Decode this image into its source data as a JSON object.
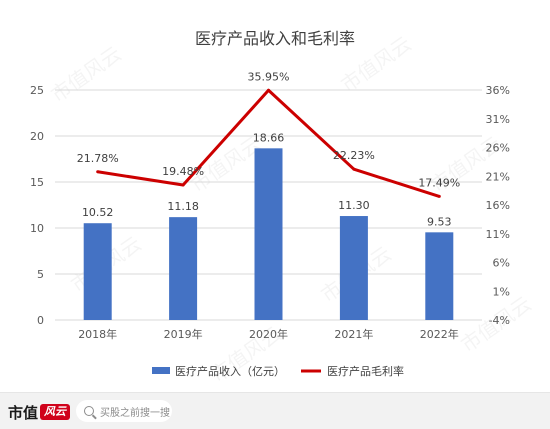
{
  "chart_data": {
    "type": "bar+line",
    "title": "医疗产品收入和毛利率",
    "categories": [
      "2018年",
      "2019年",
      "2020年",
      "2021年",
      "2022年"
    ],
    "series": [
      {
        "name": "医疗产品收入（亿元）",
        "type": "bar",
        "axis": "left",
        "color": "#4472c4",
        "values": [
          10.52,
          11.18,
          18.66,
          11.3,
          9.53
        ],
        "labels": [
          "10.52",
          "11.18",
          "18.66",
          "11.30",
          "9.53"
        ]
      },
      {
        "name": "医疗产品毛利率",
        "type": "line",
        "axis": "right",
        "color": "#cc0000",
        "values": [
          21.78,
          19.48,
          35.95,
          22.23,
          17.49
        ],
        "labels": [
          "21.78%",
          "19.48%",
          "35.95%",
          "22.23%",
          "17.49%"
        ]
      }
    ],
    "y_left": {
      "min": 0,
      "max": 25,
      "ticks": [
        "0",
        "5",
        "10",
        "15",
        "20",
        "25"
      ],
      "tick_values": [
        0,
        5,
        10,
        15,
        20,
        25
      ]
    },
    "y_right": {
      "min": -4,
      "max": 36,
      "ticks": [
        "-4%",
        "1%",
        "6%",
        "11%",
        "16%",
        "21%",
        "26%",
        "31%",
        "36%"
      ],
      "tick_values": [
        -4,
        1,
        6,
        11,
        16,
        21,
        26,
        31,
        36
      ]
    },
    "grid": true,
    "legend_position": "bottom"
  },
  "watermark": "市值风云",
  "footer": {
    "brand_text": "市值",
    "brand_badge": "风云",
    "search_placeholder": "买股之前搜一搜"
  }
}
